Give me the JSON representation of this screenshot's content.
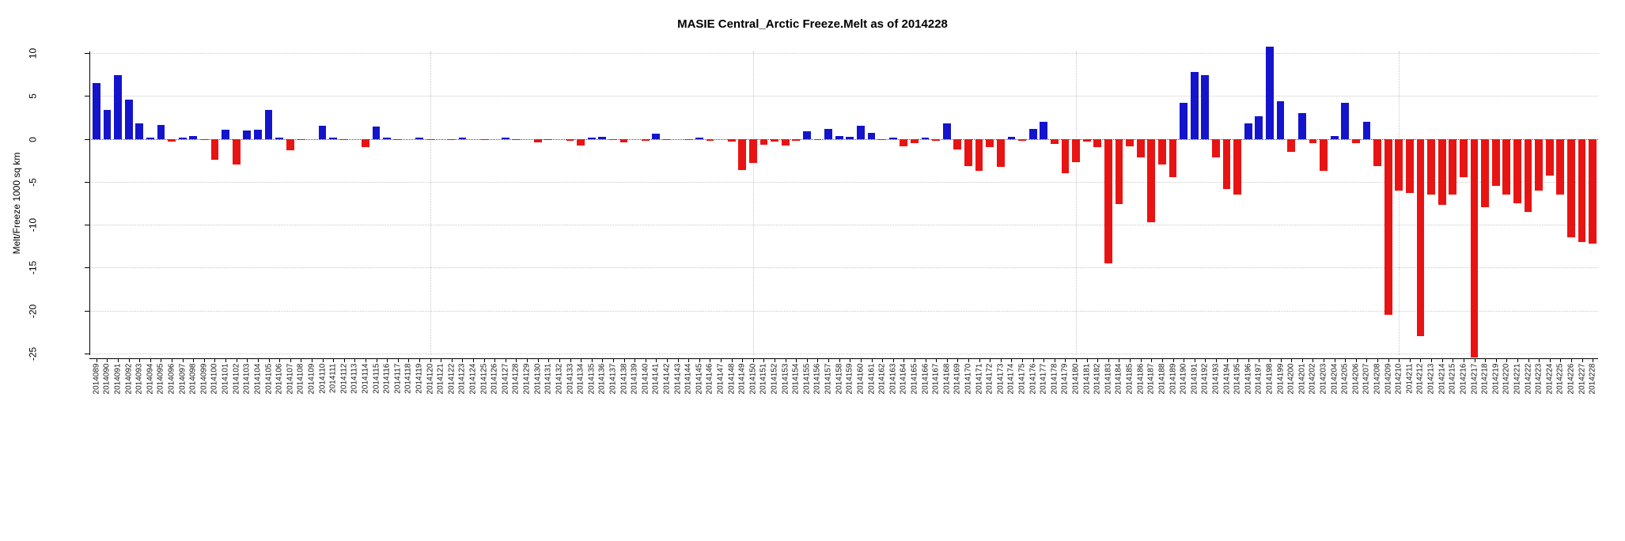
{
  "title": "MASIE Central_Arctic Freeze.Melt as of 2014228",
  "chart_data": {
    "type": "bar",
    "title": "MASIE Central_Arctic Freeze.Melt as of 2014228",
    "xlabel": "",
    "ylabel": "Melt/Freeze 1000 sq km",
    "ylim": [
      -25,
      10
    ],
    "yticks": [
      10,
      5,
      0,
      -5,
      -10,
      -15,
      -20,
      -25
    ],
    "grid": "dotted",
    "legend": "none",
    "positive_color": "#1414cc",
    "negative_color": "#e81414",
    "vertical_gridline_categories": [
      "2014120",
      "2014150",
      "2014180",
      "2014210"
    ],
    "categories": [
      "2014089",
      "2014090",
      "2014091",
      "2014092",
      "2014093",
      "2014094",
      "2014095",
      "2014096",
      "2014097",
      "2014098",
      "2014099",
      "2014100",
      "2014101",
      "2014102",
      "2014103",
      "2014104",
      "2014105",
      "2014106",
      "2014107",
      "2014108",
      "2014109",
      "2014110",
      "2014111",
      "2014112",
      "2014113",
      "2014114",
      "2014115",
      "2014116",
      "2014117",
      "2014118",
      "2014119",
      "2014120",
      "2014121",
      "2014122",
      "2014123",
      "2014124",
      "2014125",
      "2014126",
      "2014127",
      "2014128",
      "2014129",
      "2014130",
      "2014131",
      "2014132",
      "2014133",
      "2014134",
      "2014135",
      "2014136",
      "2014137",
      "2014138",
      "2014139",
      "2014140",
      "2014141",
      "2014142",
      "2014143",
      "2014144",
      "2014145",
      "2014146",
      "2014147",
      "2014148",
      "2014149",
      "2014150",
      "2014151",
      "2014152",
      "2014153",
      "2014154",
      "2014155",
      "2014156",
      "2014157",
      "2014158",
      "2014159",
      "2014160",
      "2014161",
      "2014162",
      "2014163",
      "2014164",
      "2014165",
      "2014166",
      "2014167",
      "2014168",
      "2014169",
      "2014170",
      "2014171",
      "2014172",
      "2014173",
      "2014174",
      "2014175",
      "2014176",
      "2014177",
      "2014178",
      "2014179",
      "2014180",
      "2014181",
      "2014182",
      "2014183",
      "2014184",
      "2014185",
      "2014186",
      "2014187",
      "2014188",
      "2014189",
      "2014190",
      "2014191",
      "2014192",
      "2014193",
      "2014194",
      "2014195",
      "2014196",
      "2014197",
      "2014198",
      "2014199",
      "2014200",
      "2014201",
      "2014202",
      "2014203",
      "2014204",
      "2014205",
      "2014206",
      "2014207",
      "2014208",
      "2014209",
      "2014210",
      "2014211",
      "2014212",
      "2014213",
      "2014214",
      "2014215",
      "2014216",
      "2014217",
      "2014218",
      "2014219",
      "2014220",
      "2014221",
      "2014222",
      "2014223",
      "2014224",
      "2014225",
      "2014226",
      "2014227",
      "2014228"
    ],
    "values": [
      6.5,
      3.4,
      7.4,
      4.6,
      1.8,
      0.1,
      1.6,
      -0.3,
      0.1,
      0.3,
      -0.1,
      -2.4,
      1.1,
      -3.0,
      1.0,
      1.1,
      3.4,
      0.1,
      -1.3,
      -0.1,
      0.0,
      1.5,
      0.1,
      -0.1,
      0.0,
      -1.0,
      1.4,
      0.1,
      -0.1,
      0.0,
      0.1,
      -0.1,
      0.0,
      -0.1,
      0.1,
      0.0,
      -0.1,
      0.0,
      0.1,
      -0.1,
      0.0,
      -0.4,
      -0.1,
      0.0,
      -0.2,
      -0.8,
      0.1,
      0.2,
      -0.1,
      -0.4,
      0.0,
      -0.2,
      0.6,
      -0.1,
      0.0,
      -0.1,
      0.1,
      -0.2,
      0.0,
      -0.3,
      -3.6,
      -2.8,
      -0.7,
      -0.3,
      -0.8,
      -0.2,
      0.9,
      -0.1,
      1.2,
      0.3,
      0.2,
      1.5,
      0.7,
      -0.1,
      0.1,
      -0.9,
      -0.5,
      0.1,
      -0.2,
      1.8,
      -1.2,
      -3.2,
      -3.7,
      -1.0,
      -3.3,
      0.2,
      -0.2,
      1.2,
      2.0,
      -0.6,
      -4.0,
      -2.7,
      -0.3,
      -1.0,
      -14.5,
      -7.6,
      -0.9,
      -2.2,
      -9.7,
      -3.0,
      -4.5,
      4.2,
      7.8,
      7.4,
      -2.2,
      -5.8,
      -6.5,
      1.8,
      2.6,
      10.7,
      4.4,
      -1.5,
      3.0,
      -0.5,
      -3.7,
      0.3,
      4.2,
      -0.5,
      2.0,
      -3.2,
      -20.5,
      -6.0,
      -6.3,
      -23.0,
      -6.5,
      -7.7,
      -6.5,
      -4.5,
      -25.5,
      -8.0,
      -5.5,
      -6.5,
      -7.5,
      -8.5,
      -6.0,
      -4.3,
      -6.5,
      -11.5,
      -12.0,
      -12.2
    ]
  }
}
